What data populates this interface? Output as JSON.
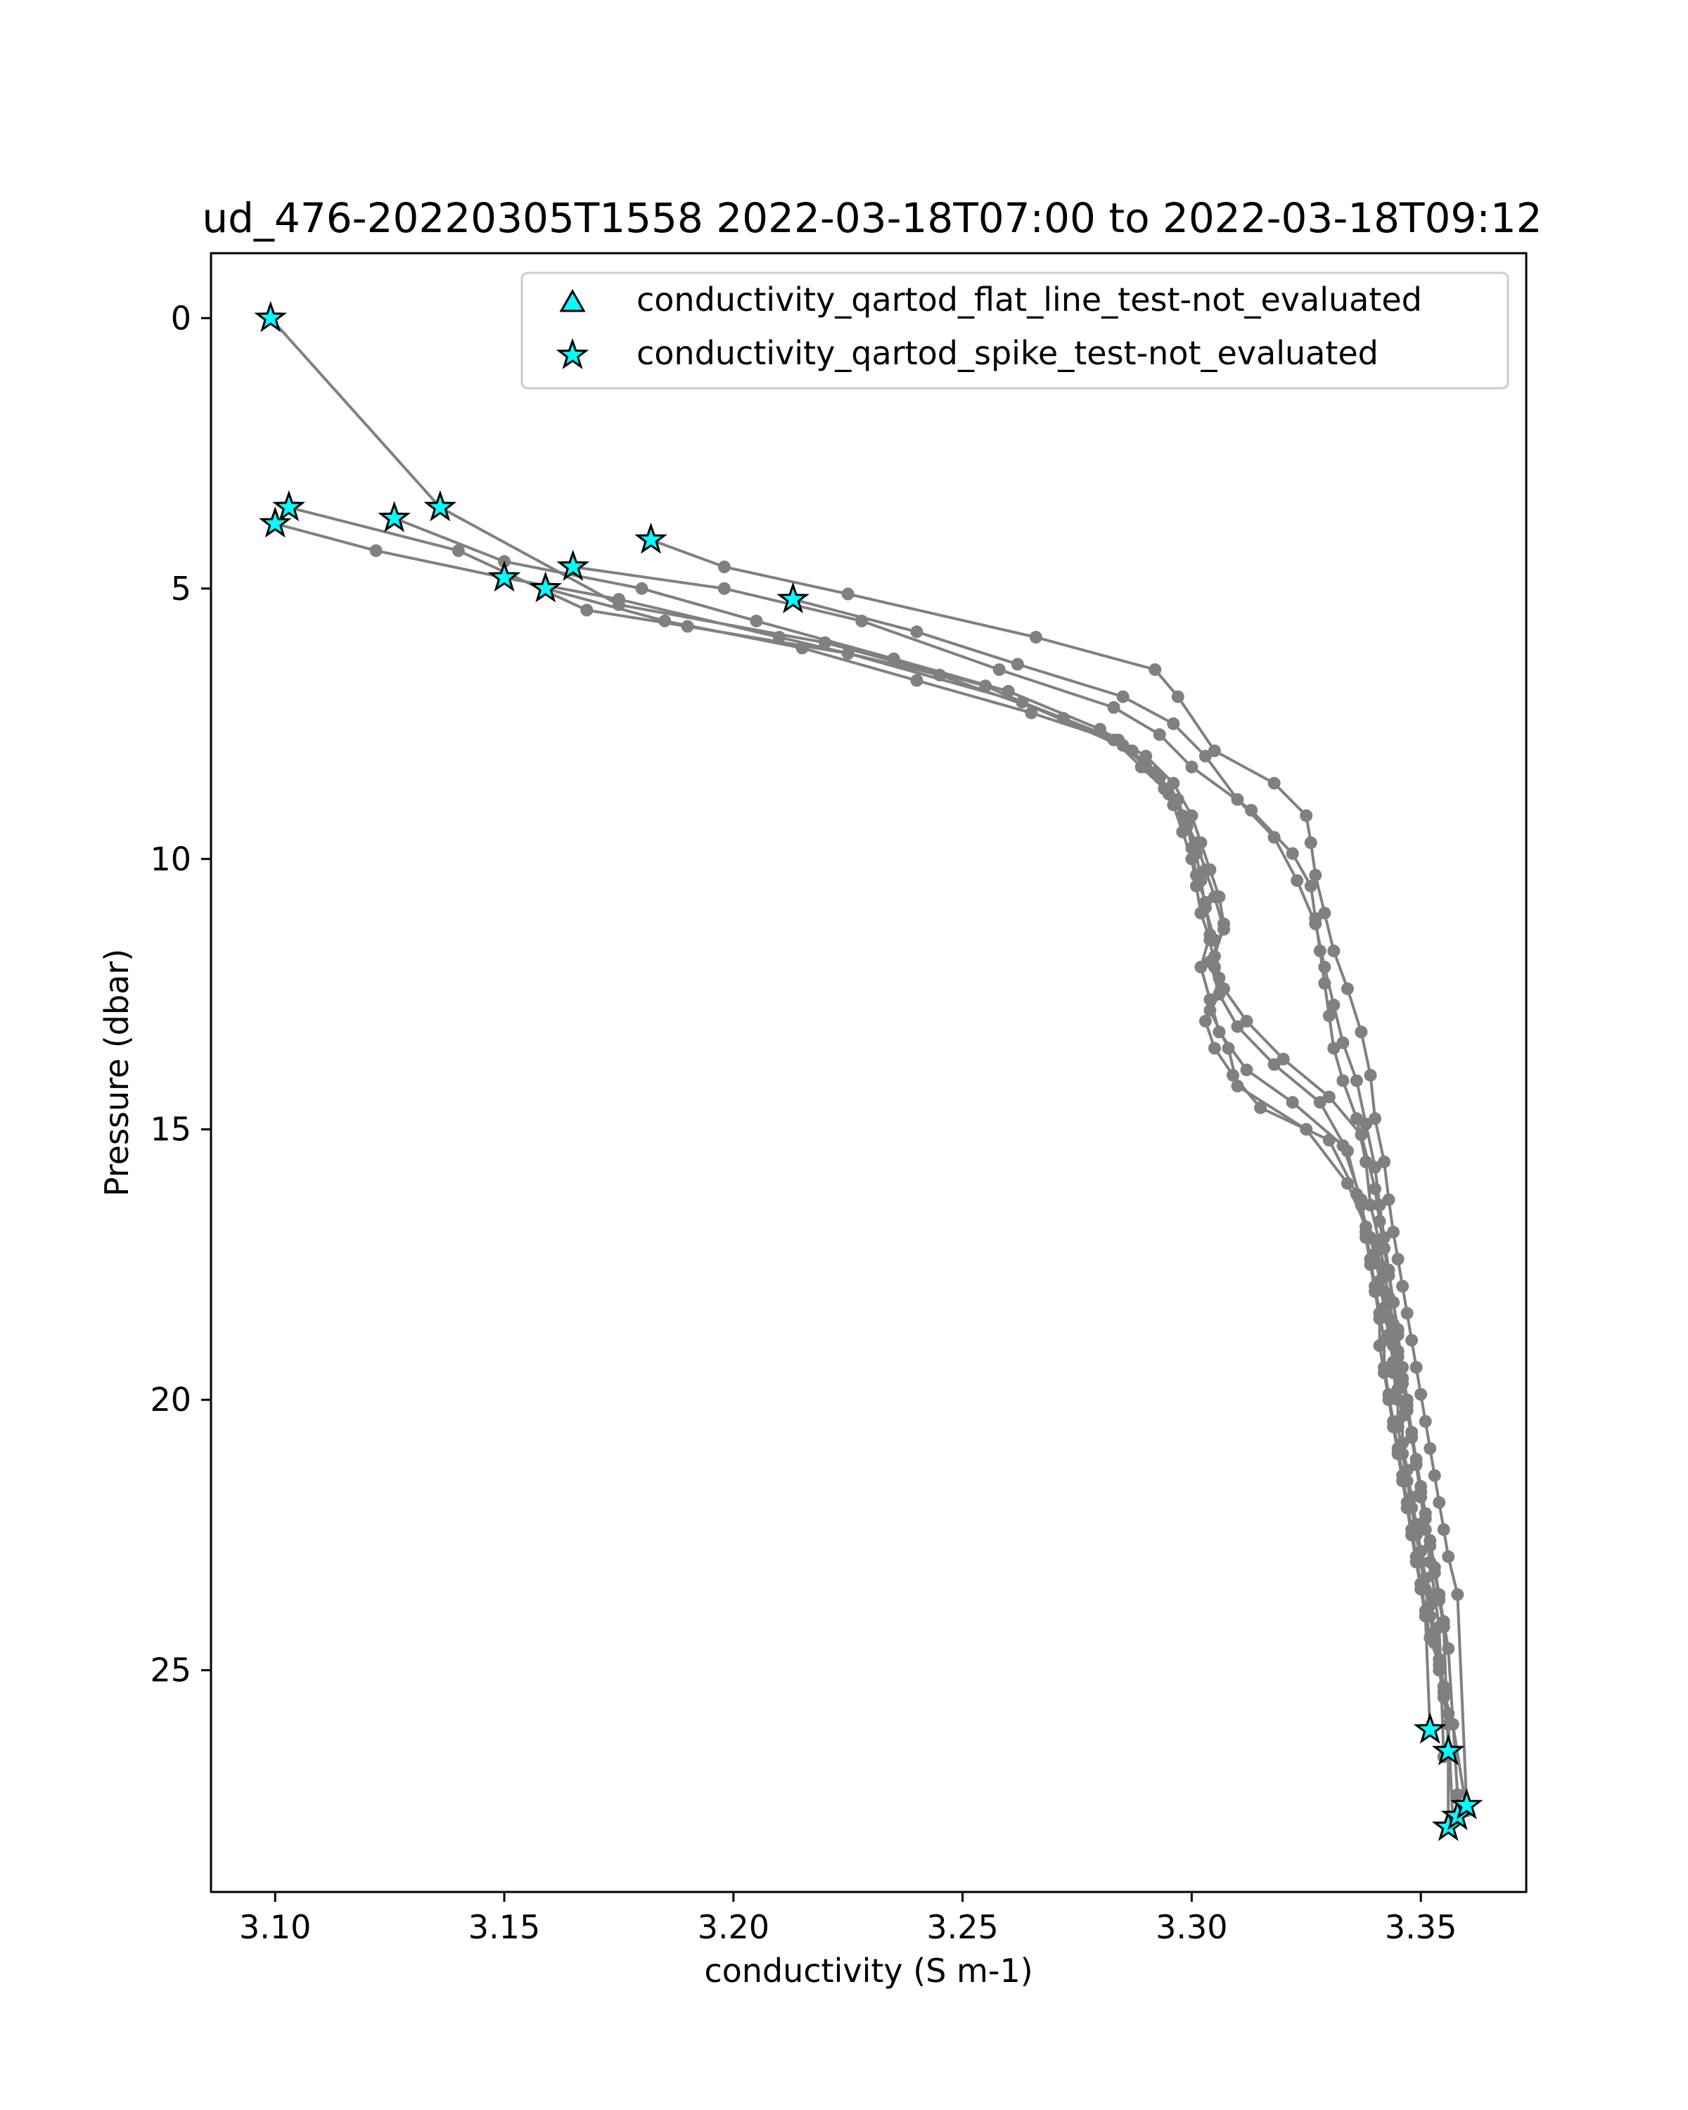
{
  "chart_data": {
    "type": "line",
    "title": "ud_476-20220305T1558 2022-03-18T07:00 to 2022-03-18T09:12",
    "xlabel": "conductivity (S m-1)",
    "ylabel": "Pressure (dbar)",
    "xlim": [
      3.086,
      3.373
    ],
    "ylim": [
      29.1,
      -1.2
    ],
    "y_inverted": true,
    "grid": false,
    "xticks": [
      3.1,
      3.15,
      3.2,
      3.25,
      3.3,
      3.35
    ],
    "xtick_labels": [
      "3.10",
      "3.15",
      "3.20",
      "3.25",
      "3.30",
      "3.35"
    ],
    "yticks": [
      0,
      5,
      10,
      15,
      20,
      25
    ],
    "ytick_labels": [
      "0",
      "5",
      "10",
      "15",
      "20",
      "25"
    ],
    "colors": {
      "line": "#808080",
      "marker": "#808080",
      "flag_face": "#00ffff",
      "flag_edge": "#000000",
      "axes": "#000000",
      "legend_border": "#cccccc"
    },
    "legend": {
      "location": "top-right",
      "entries": [
        {
          "label": "conductivity_qartod_flat_line_test-not_evaluated",
          "marker": "triangle"
        },
        {
          "label": "conductivity_qartod_spike_test-not_evaluated",
          "marker": "star"
        }
      ]
    },
    "series": [
      {
        "x": [
          3.099,
          3.136,
          3.175,
          3.22,
          3.255,
          3.287,
          3.293,
          3.296,
          3.298,
          3.3,
          3.301,
          3.302,
          3.304,
          3.305,
          3.306,
          3.303,
          3.305,
          3.309,
          3.315,
          3.33,
          3.336,
          3.339,
          3.341,
          3.342,
          3.343,
          3.344,
          3.344,
          3.345,
          3.345,
          3.346,
          3.347,
          3.348,
          3.349,
          3.35,
          3.351,
          3.352,
          3.353,
          3.354,
          3.355,
          3.356,
          3.357
        ],
        "y": [
          0.0,
          3.5,
          5.3,
          6.0,
          6.8,
          8.0,
          8.5,
          9.0,
          9.5,
          10.0,
          10.5,
          11.0,
          11.5,
          12.0,
          12.5,
          13.0,
          13.5,
          14.0,
          14.6,
          15.2,
          16.2,
          17.0,
          17.5,
          18.0,
          18.5,
          19.0,
          19.5,
          20.0,
          20.5,
          21.0,
          21.5,
          22.0,
          22.5,
          23.0,
          23.5,
          24.0,
          24.5,
          25.0,
          25.5,
          26.0,
          27.8
        ]
      },
      {
        "x": [
          3.103,
          3.14,
          3.168,
          3.19,
          3.225,
          3.263,
          3.284,
          3.29,
          3.295,
          3.299,
          3.3,
          3.301,
          3.303,
          3.304,
          3.302,
          3.304,
          3.306,
          3.312,
          3.322,
          3.333,
          3.337,
          3.338,
          3.339,
          3.34,
          3.341,
          3.342,
          3.342,
          3.343,
          3.344,
          3.345,
          3.346,
          3.347,
          3.348,
          3.349,
          3.35,
          3.351,
          3.352,
          3.354,
          3.355,
          3.357,
          3.36
        ],
        "y": [
          3.5,
          4.3,
          5.4,
          5.7,
          6.2,
          7.1,
          7.8,
          8.3,
          8.8,
          9.3,
          9.8,
          10.3,
          10.8,
          11.4,
          12.0,
          12.6,
          13.2,
          13.9,
          14.5,
          15.3,
          16.3,
          16.9,
          17.4,
          17.9,
          18.4,
          18.9,
          19.4,
          19.9,
          20.4,
          20.9,
          21.4,
          21.9,
          22.4,
          22.9,
          23.4,
          23.9,
          24.4,
          24.9,
          25.4,
          26.0,
          27.6
        ]
      },
      {
        "x": [
          3.1,
          3.122,
          3.15,
          3.175,
          3.21,
          3.245,
          3.272,
          3.285,
          3.292,
          3.297,
          3.299,
          3.301,
          3.302,
          3.303,
          3.305,
          3.306,
          3.304,
          3.308,
          3.31,
          3.325,
          3.334,
          3.338,
          3.34,
          3.341,
          3.342,
          3.343,
          3.344,
          3.345,
          3.346,
          3.346,
          3.347,
          3.348,
          3.349,
          3.35,
          3.351,
          3.352,
          3.353,
          3.354,
          3.355,
          3.356,
          3.356
        ],
        "y": [
          3.8,
          4.3,
          4.8,
          5.2,
          5.9,
          6.6,
          7.4,
          7.9,
          8.4,
          8.9,
          9.4,
          9.9,
          10.4,
          10.9,
          11.5,
          12.2,
          12.8,
          13.5,
          14.2,
          15.0,
          16.0,
          16.8,
          17.3,
          17.8,
          18.3,
          18.8,
          19.3,
          19.8,
          20.3,
          20.8,
          21.3,
          21.8,
          22.3,
          22.8,
          23.3,
          23.8,
          24.3,
          24.8,
          25.3,
          25.8,
          27.9
        ]
      },
      {
        "x": [
          3.126,
          3.15,
          3.18,
          3.205,
          3.235,
          3.26,
          3.28,
          3.29,
          3.296,
          3.3,
          3.302,
          3.304,
          3.306,
          3.307,
          3.305,
          3.307,
          3.312,
          3.32,
          3.33,
          3.337,
          3.34,
          3.341,
          3.342,
          3.343,
          3.344,
          3.345,
          3.345,
          3.346,
          3.347,
          3.348,
          3.349,
          3.35,
          3.351,
          3.352,
          3.353,
          3.354,
          3.355,
          3.356
        ],
        "y": [
          3.7,
          4.5,
          5.0,
          5.6,
          6.3,
          6.9,
          7.6,
          8.1,
          8.6,
          9.2,
          9.7,
          10.2,
          10.7,
          11.2,
          11.8,
          12.4,
          13.0,
          13.7,
          14.4,
          15.1,
          16.1,
          16.7,
          17.2,
          17.7,
          18.2,
          18.7,
          19.2,
          19.7,
          20.2,
          20.7,
          21.2,
          21.7,
          22.2,
          22.7,
          23.2,
          23.7,
          24.2,
          26.5
        ]
      },
      {
        "x": [
          3.159,
          3.185,
          3.215,
          3.24,
          3.265,
          3.283,
          3.289,
          3.294,
          3.298,
          3.301,
          3.303,
          3.305,
          3.307,
          3.304,
          3.306,
          3.31,
          3.318,
          3.328,
          3.334,
          3.337,
          3.338,
          3.339,
          3.34,
          3.341,
          3.341,
          3.342,
          3.343,
          3.344,
          3.345,
          3.346,
          3.347,
          3.348,
          3.349,
          3.35,
          3.351,
          3.352
        ],
        "y": [
          5.0,
          5.6,
          6.1,
          6.7,
          7.3,
          7.8,
          8.3,
          8.7,
          9.2,
          9.7,
          10.2,
          10.7,
          11.3,
          11.9,
          12.5,
          13.1,
          13.8,
          14.5,
          15.4,
          16.4,
          17.0,
          17.5,
          18.0,
          18.5,
          19.0,
          19.5,
          20.0,
          20.5,
          21.0,
          21.5,
          22.0,
          22.5,
          23.0,
          23.5,
          24.0,
          26.1
        ]
      },
      {
        "x": [
          3.165,
          3.198,
          3.228,
          3.258,
          3.283,
          3.293,
          3.3,
          3.313,
          3.322,
          3.326,
          3.327,
          3.328,
          3.329,
          3.33,
          3.331,
          3.333,
          3.336,
          3.338,
          3.339,
          3.341,
          3.342,
          3.343,
          3.344,
          3.345,
          3.346,
          3.347,
          3.348,
          3.349,
          3.35,
          3.351,
          3.352,
          3.353,
          3.354,
          3.355,
          3.356,
          3.358
        ],
        "y": [
          4.6,
          5.0,
          5.6,
          6.5,
          7.2,
          7.7,
          8.3,
          9.1,
          9.9,
          10.5,
          11.1,
          11.7,
          12.3,
          12.9,
          13.5,
          14.1,
          14.8,
          15.6,
          16.4,
          17.1,
          17.6,
          18.1,
          18.6,
          19.1,
          19.6,
          20.1,
          20.6,
          21.1,
          21.6,
          22.1,
          22.6,
          23.1,
          23.6,
          24.1,
          24.6,
          27.3
        ]
      },
      {
        "x": [
          3.182,
          3.198,
          3.225,
          3.266,
          3.292,
          3.297,
          3.305,
          3.318,
          3.325,
          3.326,
          3.327,
          3.329,
          3.331,
          3.334,
          3.337,
          3.339,
          3.34,
          3.342,
          3.343,
          3.344,
          3.345,
          3.346,
          3.347,
          3.348,
          3.349,
          3.35,
          3.351,
          3.352,
          3.353,
          3.354,
          3.355,
          3.356,
          3.358,
          3.36
        ],
        "y": [
          4.1,
          4.6,
          5.1,
          5.9,
          6.5,
          7.0,
          8.0,
          8.6,
          9.2,
          9.7,
          10.3,
          11.0,
          11.7,
          12.4,
          13.2,
          14.0,
          14.8,
          15.6,
          16.3,
          16.9,
          17.4,
          17.9,
          18.4,
          18.9,
          19.4,
          19.9,
          20.4,
          20.9,
          21.4,
          21.9,
          22.4,
          22.9,
          23.6,
          27.5
        ]
      },
      {
        "x": [
          3.213,
          3.24,
          3.262,
          3.285,
          3.296,
          3.303,
          3.31,
          3.318,
          3.323,
          3.327,
          3.329,
          3.331,
          3.333,
          3.336,
          3.338,
          3.34,
          3.341,
          3.342,
          3.343,
          3.344,
          3.345,
          3.346,
          3.347,
          3.348,
          3.349,
          3.35,
          3.351,
          3.352,
          3.353,
          3.354,
          3.355
        ],
        "y": [
          5.2,
          5.8,
          6.4,
          7.0,
          7.5,
          8.1,
          8.9,
          9.6,
          10.4,
          11.2,
          12.0,
          12.7,
          13.4,
          14.1,
          14.9,
          15.7,
          16.4,
          17.0,
          17.6,
          18.2,
          18.8,
          19.4,
          20.0,
          20.6,
          21.2,
          21.8,
          22.4,
          23.0,
          23.6,
          24.2,
          26.6
        ]
      }
    ],
    "flagged_points": [
      {
        "x": 3.099,
        "y": 0.0
      },
      {
        "x": 3.103,
        "y": 3.5
      },
      {
        "x": 3.1,
        "y": 3.8
      },
      {
        "x": 3.126,
        "y": 3.7
      },
      {
        "x": 3.136,
        "y": 3.5
      },
      {
        "x": 3.15,
        "y": 4.8
      },
      {
        "x": 3.159,
        "y": 5.0
      },
      {
        "x": 3.165,
        "y": 4.6
      },
      {
        "x": 3.182,
        "y": 4.1
      },
      {
        "x": 3.213,
        "y": 5.2
      },
      {
        "x": 3.352,
        "y": 26.1
      },
      {
        "x": 3.356,
        "y": 26.5
      },
      {
        "x": 3.356,
        "y": 27.9
      },
      {
        "x": 3.358,
        "y": 27.7
      },
      {
        "x": 3.36,
        "y": 27.5
      }
    ]
  }
}
